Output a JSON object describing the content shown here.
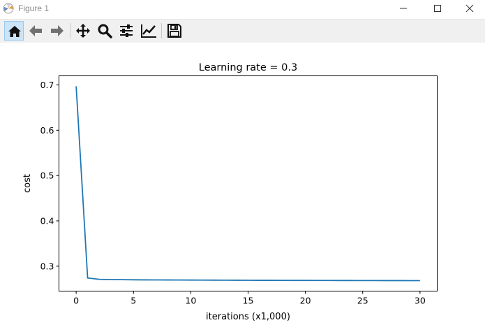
{
  "window": {
    "title": "Figure 1"
  },
  "toolbar": {
    "tools": [
      {
        "name": "home-icon",
        "active": true
      },
      {
        "name": "back-icon"
      },
      {
        "name": "forward-icon"
      },
      {
        "name": "pan-icon"
      },
      {
        "name": "zoom-icon"
      },
      {
        "name": "subplots-icon"
      },
      {
        "name": "edit-axes-icon"
      },
      {
        "name": "save-icon"
      }
    ]
  },
  "colors": {
    "line": "#1f77b4",
    "toolbar_bg": "#f0f0f0",
    "active_tool": "#cce4f7"
  },
  "chart_data": {
    "type": "line",
    "title": "Learning rate = 0.3",
    "xlabel": "iterations (x1,000)",
    "ylabel": "cost",
    "xlim": [
      -1.5,
      31.5
    ],
    "ylim": [
      0.245,
      0.72
    ],
    "xticks": [
      0,
      5,
      10,
      15,
      20,
      25,
      30
    ],
    "xtick_labels": [
      "0",
      "5",
      "10",
      "15",
      "20",
      "25",
      "30"
    ],
    "yticks": [
      0.3,
      0.4,
      0.5,
      0.6,
      0.7
    ],
    "ytick_labels": [
      "0.3",
      "0.4",
      "0.5",
      "0.6",
      "0.7"
    ],
    "grid": false,
    "series": [
      {
        "x": [
          0,
          1,
          2,
          3,
          4,
          5,
          6,
          7,
          8,
          9,
          10,
          11,
          12,
          13,
          14,
          15,
          16,
          17,
          18,
          19,
          20,
          21,
          22,
          23,
          24,
          25,
          26,
          27,
          28,
          29,
          30
        ],
        "values": [
          0.697,
          0.274,
          0.271,
          0.2705,
          0.2702,
          0.27,
          0.2698,
          0.2697,
          0.2696,
          0.2695,
          0.2694,
          0.2693,
          0.2692,
          0.2691,
          0.269,
          0.2689,
          0.2688,
          0.2688,
          0.2687,
          0.2686,
          0.2686,
          0.2685,
          0.2685,
          0.2684,
          0.2684,
          0.2683,
          0.2683,
          0.2682,
          0.2682,
          0.2681,
          0.2681
        ]
      }
    ]
  }
}
